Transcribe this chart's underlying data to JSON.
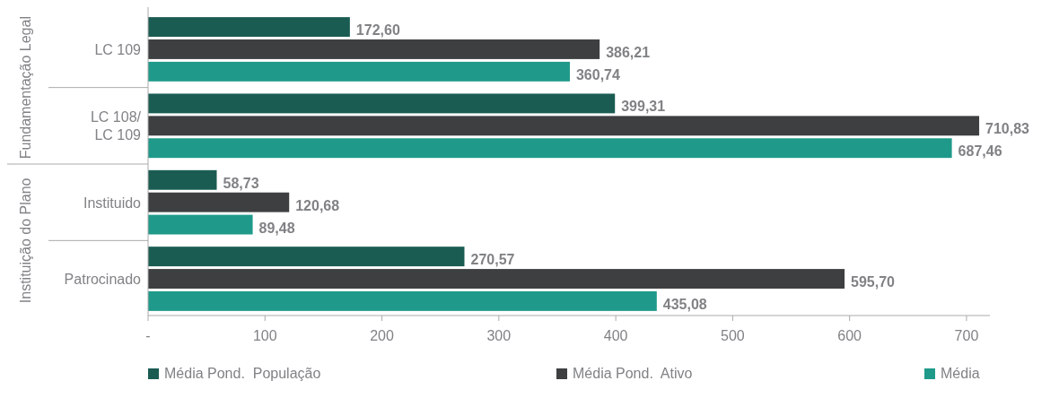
{
  "chart_data": {
    "type": "bar",
    "orientation": "horizontal",
    "categories": [
      "LC 109",
      "LC 108/ LC 109",
      "Instituido",
      "Patrocinado"
    ],
    "series": [
      {
        "name": "Média Pond.  População",
        "color": "#1a5c52",
        "values": [
          172.6,
          399.31,
          58.73,
          270.57
        ],
        "value_labels": [
          "172,60",
          "399,31",
          "58,73",
          "270,57"
        ]
      },
      {
        "name": "Média Pond.  Ativo",
        "color": "#3d3f41",
        "values": [
          386.21,
          710.83,
          120.68,
          595.7
        ],
        "value_labels": [
          "386,21",
          "710,83",
          "120,68",
          "595,70"
        ]
      },
      {
        "name": "Média",
        "color": "#1f9a8a",
        "values": [
          360.74,
          687.46,
          89.48,
          435.08
        ],
        "value_labels": [
          "360,74",
          "687,46",
          "89,48",
          "435,08"
        ]
      }
    ],
    "xlim": [
      0,
      720
    ],
    "xticks": [
      {
        "value": 0,
        "label": "-"
      },
      100,
      200,
      300,
      400,
      500,
      600,
      700
    ],
    "annotations": [
      "Fundamentação Legal",
      "Instituição do Plano"
    ],
    "legend": "bottom",
    "grid": false
  }
}
